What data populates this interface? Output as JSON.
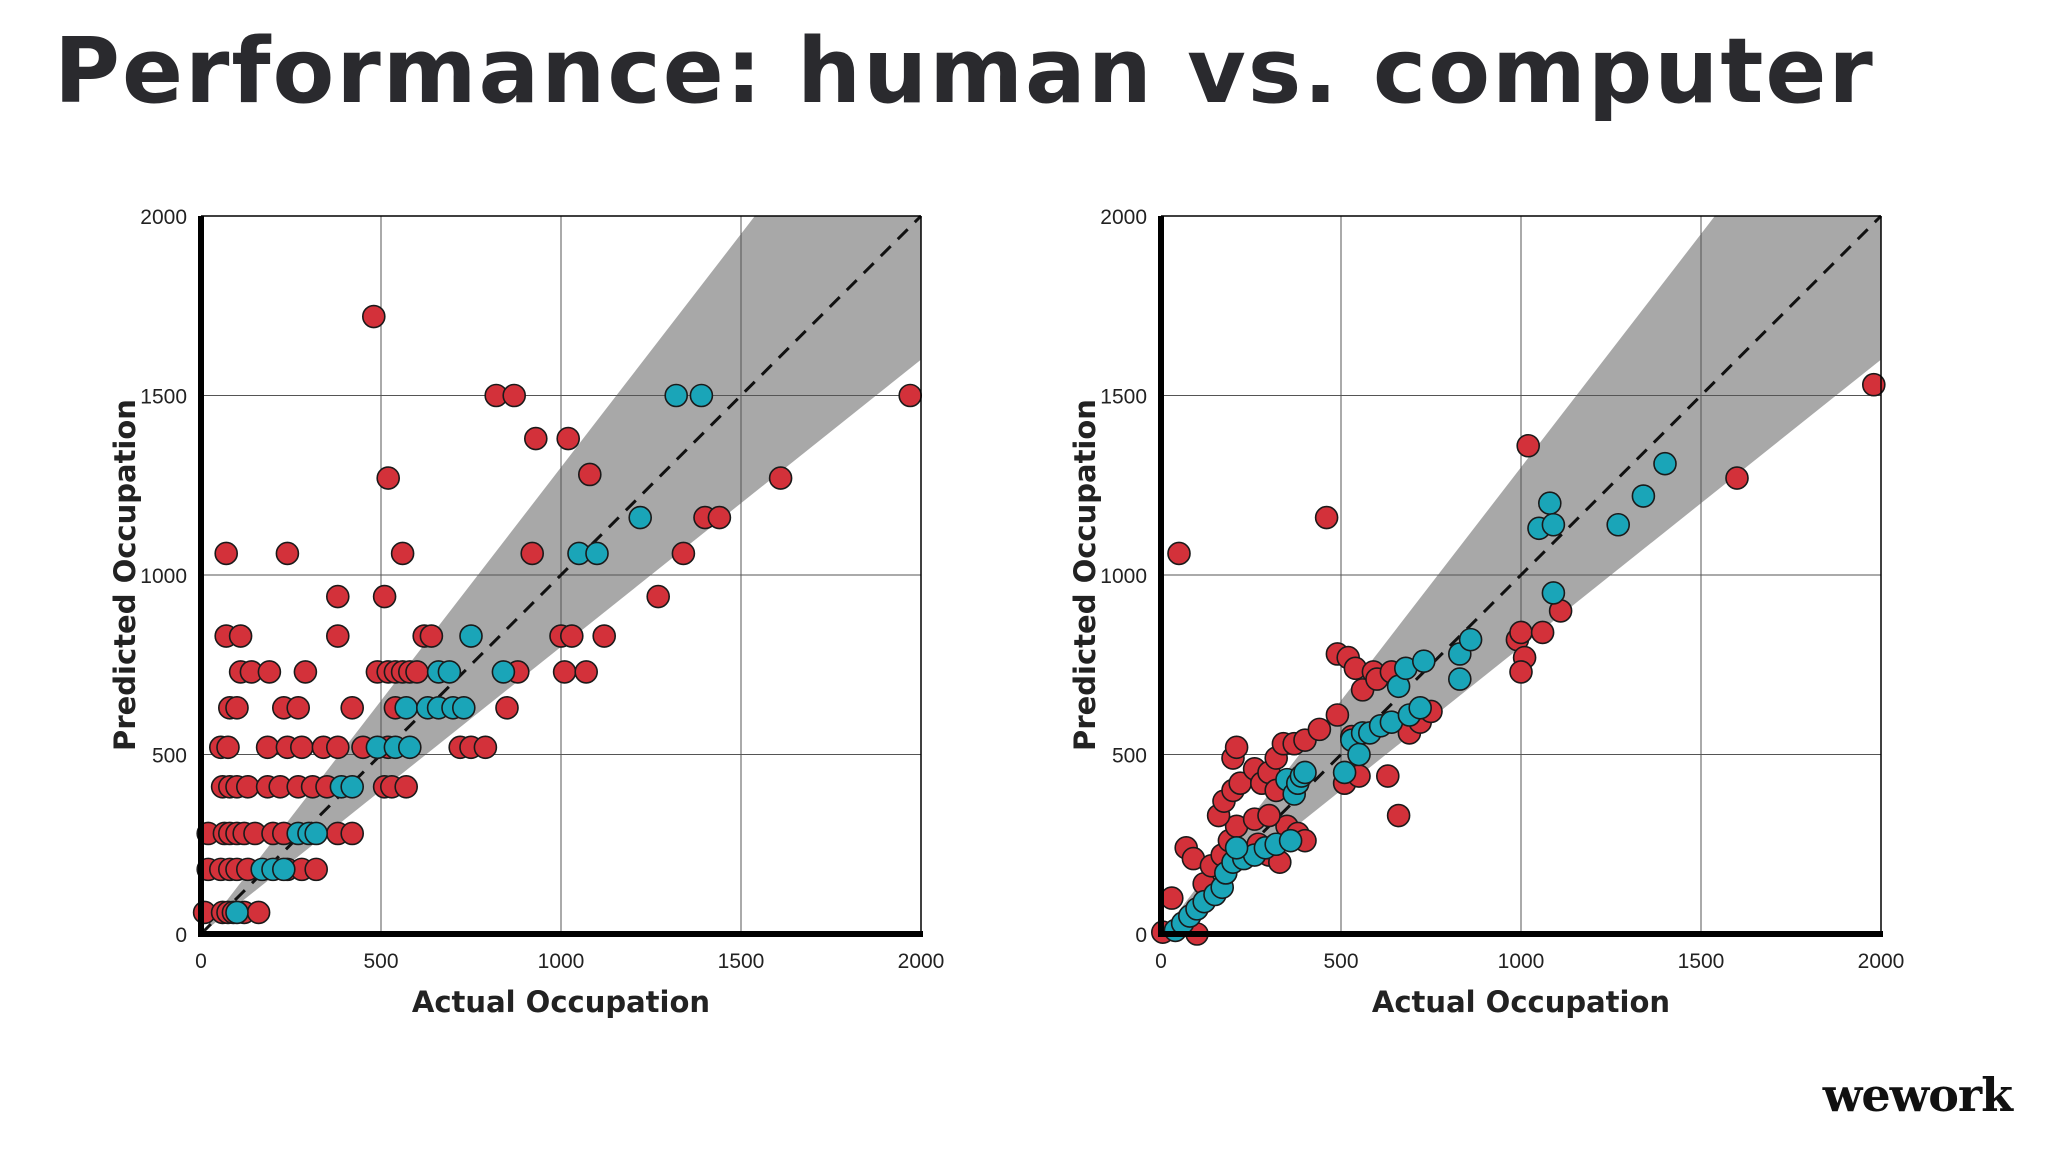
{
  "slide": {
    "title": "Performance: human vs. computer",
    "logo": "wework"
  },
  "colors": {
    "red": "#d3313a",
    "teal": "#1aa5b8",
    "band": "#a8a8a8",
    "grid": "#555555",
    "axis": "#000000",
    "title": "#2a2a2e"
  },
  "chart_data": [
    {
      "type": "scatter",
      "id": "human",
      "xlabel": "Actual Occupation",
      "ylabel": "Predicted Occupation",
      "xlim": [
        0,
        2000
      ],
      "ylim": [
        0,
        2000
      ],
      "xticks": [
        0,
        500,
        1000,
        1500,
        2000
      ],
      "yticks": [
        0,
        500,
        1000,
        1500,
        2000
      ],
      "grid": true,
      "reference_line": {
        "style": "dashed",
        "from": [
          0,
          0
        ],
        "to": [
          2000,
          2000
        ]
      },
      "band": {
        "lower_slope": 0.8,
        "upper_slope": 1.3
      },
      "series": [
        {
          "color": "red",
          "points": [
            [
              10,
              60
            ],
            [
              60,
              60
            ],
            [
              75,
              60
            ],
            [
              90,
              60
            ],
            [
              120,
              60
            ],
            [
              160,
              60
            ],
            [
              20,
              180
            ],
            [
              55,
              180
            ],
            [
              80,
              180
            ],
            [
              100,
              180
            ],
            [
              130,
              180
            ],
            [
              240,
              180
            ],
            [
              280,
              180
            ],
            [
              320,
              180
            ],
            [
              20,
              280
            ],
            [
              65,
              280
            ],
            [
              80,
              280
            ],
            [
              100,
              280
            ],
            [
              120,
              280
            ],
            [
              150,
              280
            ],
            [
              200,
              280
            ],
            [
              230,
              280
            ],
            [
              380,
              280
            ],
            [
              420,
              280
            ],
            [
              60,
              410
            ],
            [
              80,
              410
            ],
            [
              100,
              410
            ],
            [
              130,
              410
            ],
            [
              185,
              410
            ],
            [
              220,
              410
            ],
            [
              270,
              410
            ],
            [
              310,
              410
            ],
            [
              350,
              410
            ],
            [
              55,
              520
            ],
            [
              75,
              520
            ],
            [
              185,
              520
            ],
            [
              240,
              520
            ],
            [
              280,
              520
            ],
            [
              340,
              520
            ],
            [
              380,
              520
            ],
            [
              450,
              520
            ],
            [
              520,
              520
            ],
            [
              80,
              630
            ],
            [
              100,
              630
            ],
            [
              230,
              630
            ],
            [
              270,
              630
            ],
            [
              420,
              630
            ],
            [
              540,
              630
            ],
            [
              110,
              730
            ],
            [
              140,
              730
            ],
            [
              190,
              730
            ],
            [
              290,
              730
            ],
            [
              490,
              730
            ],
            [
              520,
              730
            ],
            [
              540,
              730
            ],
            [
              560,
              730
            ],
            [
              580,
              730
            ],
            [
              600,
              730
            ],
            [
              70,
              830
            ],
            [
              110,
              830
            ],
            [
              380,
              830
            ],
            [
              620,
              830
            ],
            [
              640,
              830
            ],
            [
              380,
              940
            ],
            [
              510,
              940
            ],
            [
              70,
              1060
            ],
            [
              240,
              1060
            ],
            [
              560,
              1060
            ],
            [
              520,
              1270
            ],
            [
              480,
              1720
            ],
            [
              510,
              410
            ],
            [
              530,
              410
            ],
            [
              570,
              410
            ],
            [
              720,
              520
            ],
            [
              750,
              520
            ],
            [
              790,
              520
            ],
            [
              850,
              630
            ],
            [
              880,
              730
            ],
            [
              820,
              1500
            ],
            [
              870,
              1500
            ],
            [
              930,
              1380
            ],
            [
              1020,
              1380
            ],
            [
              1080,
              1280
            ],
            [
              920,
              1060
            ],
            [
              1000,
              830
            ],
            [
              1010,
              730
            ],
            [
              1030,
              830
            ],
            [
              1070,
              730
            ],
            [
              1120,
              830
            ],
            [
              1270,
              940
            ],
            [
              1340,
              1060
            ],
            [
              1400,
              1160
            ],
            [
              1440,
              1160
            ],
            [
              1610,
              1270
            ],
            [
              1970,
              1500
            ]
          ]
        },
        {
          "color": "teal",
          "points": [
            [
              100,
              60
            ],
            [
              170,
              180
            ],
            [
              200,
              180
            ],
            [
              230,
              180
            ],
            [
              270,
              280
            ],
            [
              300,
              280
            ],
            [
              320,
              280
            ],
            [
              390,
              410
            ],
            [
              420,
              410
            ],
            [
              490,
              520
            ],
            [
              540,
              520
            ],
            [
              580,
              520
            ],
            [
              570,
              630
            ],
            [
              630,
              630
            ],
            [
              660,
              630
            ],
            [
              700,
              630
            ],
            [
              730,
              630
            ],
            [
              660,
              730
            ],
            [
              690,
              730
            ],
            [
              840,
              730
            ],
            [
              750,
              830
            ],
            [
              1050,
              1060
            ],
            [
              1100,
              1060
            ],
            [
              1220,
              1160
            ],
            [
              1320,
              1500
            ],
            [
              1390,
              1500
            ]
          ]
        }
      ]
    },
    {
      "type": "scatter",
      "id": "computer",
      "xlabel": "Actual Occupation",
      "ylabel": "Predicted Occupation",
      "xlim": [
        0,
        2000
      ],
      "ylim": [
        0,
        2000
      ],
      "xticks": [
        0,
        500,
        1000,
        1500,
        2000
      ],
      "yticks": [
        0,
        500,
        1000,
        1500,
        2000
      ],
      "grid": true,
      "reference_line": {
        "style": "dashed",
        "from": [
          0,
          0
        ],
        "to": [
          2000,
          2000
        ]
      },
      "band": {
        "lower_slope": 0.8,
        "upper_slope": 1.3
      },
      "series": [
        {
          "color": "red",
          "points": [
            [
              5,
              5
            ],
            [
              30,
              100
            ],
            [
              70,
              240
            ],
            [
              90,
              210
            ],
            [
              100,
              0
            ],
            [
              120,
              140
            ],
            [
              140,
              190
            ],
            [
              170,
              220
            ],
            [
              190,
              260
            ],
            [
              210,
              300
            ],
            [
              160,
              330
            ],
            [
              175,
              370
            ],
            [
              200,
              400
            ],
            [
              220,
              420
            ],
            [
              260,
              460
            ],
            [
              280,
              420
            ],
            [
              300,
              450
            ],
            [
              320,
              490
            ],
            [
              200,
              490
            ],
            [
              210,
              520
            ],
            [
              340,
              530
            ],
            [
              370,
              530
            ],
            [
              400,
              540
            ],
            [
              320,
              400
            ],
            [
              350,
              300
            ],
            [
              380,
              280
            ],
            [
              400,
              260
            ],
            [
              270,
              250
            ],
            [
              300,
              220
            ],
            [
              330,
              200
            ],
            [
              260,
              320
            ],
            [
              300,
              330
            ],
            [
              440,
              570
            ],
            [
              460,
              1160
            ],
            [
              490,
              780
            ],
            [
              520,
              770
            ],
            [
              540,
              740
            ],
            [
              560,
              680
            ],
            [
              590,
              730
            ],
            [
              600,
              710
            ],
            [
              510,
              420
            ],
            [
              550,
              440
            ],
            [
              530,
              550
            ],
            [
              490,
              610
            ],
            [
              630,
              440
            ],
            [
              660,
              330
            ],
            [
              640,
              730
            ],
            [
              690,
              560
            ],
            [
              720,
              590
            ],
            [
              750,
              620
            ],
            [
              50,
              1060
            ],
            [
              990,
              820
            ],
            [
              1000,
              840
            ],
            [
              1010,
              770
            ],
            [
              1000,
              730
            ],
            [
              1060,
              840
            ],
            [
              1110,
              900
            ],
            [
              1020,
              1360
            ],
            [
              1600,
              1270
            ],
            [
              1980,
              1530
            ]
          ]
        },
        {
          "color": "teal",
          "points": [
            [
              40,
              10
            ],
            [
              60,
              30
            ],
            [
              80,
              50
            ],
            [
              100,
              70
            ],
            [
              120,
              90
            ],
            [
              150,
              110
            ],
            [
              170,
              130
            ],
            [
              180,
              170
            ],
            [
              200,
              200
            ],
            [
              230,
              210
            ],
            [
              260,
              220
            ],
            [
              290,
              240
            ],
            [
              320,
              250
            ],
            [
              360,
              260
            ],
            [
              210,
              240
            ],
            [
              350,
              430
            ],
            [
              370,
              390
            ],
            [
              380,
              420
            ],
            [
              390,
              440
            ],
            [
              400,
              450
            ],
            [
              510,
              450
            ],
            [
              530,
              540
            ],
            [
              550,
              500
            ],
            [
              560,
              560
            ],
            [
              580,
              560
            ],
            [
              610,
              580
            ],
            [
              640,
              590
            ],
            [
              660,
              690
            ],
            [
              680,
              740
            ],
            [
              690,
              610
            ],
            [
              720,
              630
            ],
            [
              730,
              760
            ],
            [
              830,
              710
            ],
            [
              830,
              780
            ],
            [
              860,
              820
            ],
            [
              1050,
              1130
            ],
            [
              1080,
              1200
            ],
            [
              1090,
              1140
            ],
            [
              1090,
              950
            ],
            [
              1270,
              1140
            ],
            [
              1340,
              1220
            ],
            [
              1400,
              1310
            ]
          ]
        }
      ]
    }
  ]
}
